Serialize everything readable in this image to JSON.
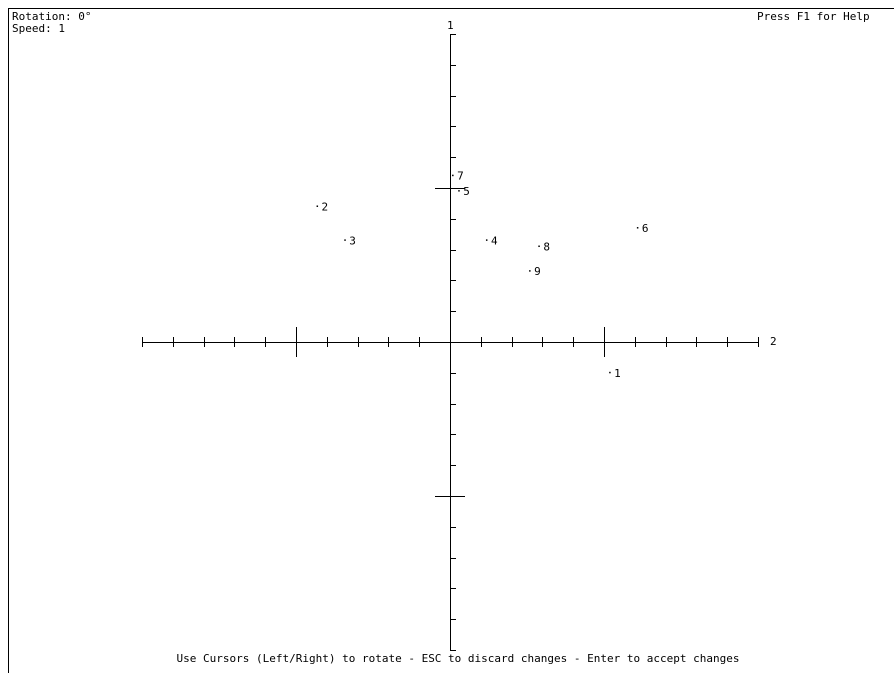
{
  "status": {
    "rotation": "Rotation: 0°",
    "speed": "Speed: 1",
    "help": "Press F1 for Help"
  },
  "footer": "Use Cursors (Left/Right) to rotate - ESC to discard changes - Enter to accept changes",
  "chart_data": {
    "type": "scatter",
    "x_label": "2",
    "y_label": "1",
    "xlim": [
      -1,
      1
    ],
    "ylim": [
      -1,
      1
    ],
    "xticks": [
      -1,
      -0.9,
      -0.8,
      -0.7,
      -0.6,
      -0.5,
      -0.4,
      -0.3,
      -0.2,
      -0.1,
      0.1,
      0.2,
      0.3,
      0.4,
      0.5,
      0.6,
      0.7,
      0.8,
      0.9,
      1
    ],
    "yticks": [
      -1,
      -0.9,
      -0.8,
      -0.7,
      -0.6,
      -0.5,
      -0.4,
      -0.3,
      -0.2,
      -0.1,
      0.1,
      0.2,
      0.3,
      0.4,
      0.5,
      0.6,
      0.7,
      0.8,
      0.9,
      1
    ],
    "major_ticks": [
      -0.5,
      0.5
    ],
    "color": "#000000",
    "labels": [
      "1",
      "2",
      "3",
      "4",
      "5",
      "6",
      "7",
      "8",
      "9"
    ],
    "x": [
      0.52,
      -0.43,
      -0.34,
      0.12,
      0.03,
      0.61,
      0.01,
      0.29,
      0.26
    ],
    "y": [
      -0.1,
      0.44,
      0.33,
      0.33,
      0.49,
      0.37,
      0.54,
      0.31,
      0.23
    ]
  }
}
